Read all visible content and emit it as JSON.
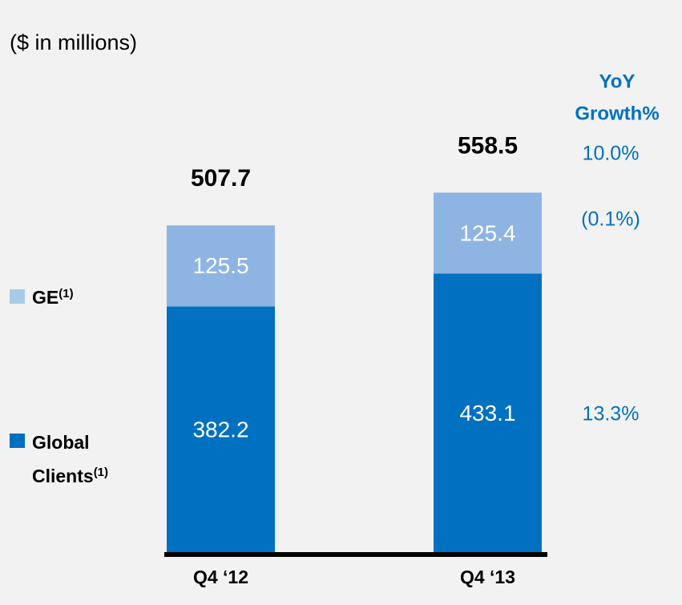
{
  "chart_data": {
    "type": "stacked_bar",
    "title": "($ in millions)",
    "categories": [
      "Q4 ‘12",
      "Q4 ‘13"
    ],
    "series": [
      {
        "name": "Global Clients",
        "footnote": "(1)",
        "color": "#0070c0",
        "legend_color": "#0070c0",
        "values": [
          382.2,
          433.1
        ]
      },
      {
        "name": "GE",
        "footnote": "(1)",
        "color": "#8eb4e3",
        "legend_color": "#a6cbe8",
        "values": [
          125.5,
          125.4
        ]
      }
    ],
    "totals": [
      507.7,
      558.5
    ],
    "growth": {
      "title_lines": [
        "YoY",
        "Growth%"
      ],
      "color": "#0070c0",
      "values": [
        10.0,
        -0.1,
        13.3
      ],
      "value_labels": [
        "10.0%",
        "(0.1%)",
        "13.3%"
      ]
    }
  }
}
